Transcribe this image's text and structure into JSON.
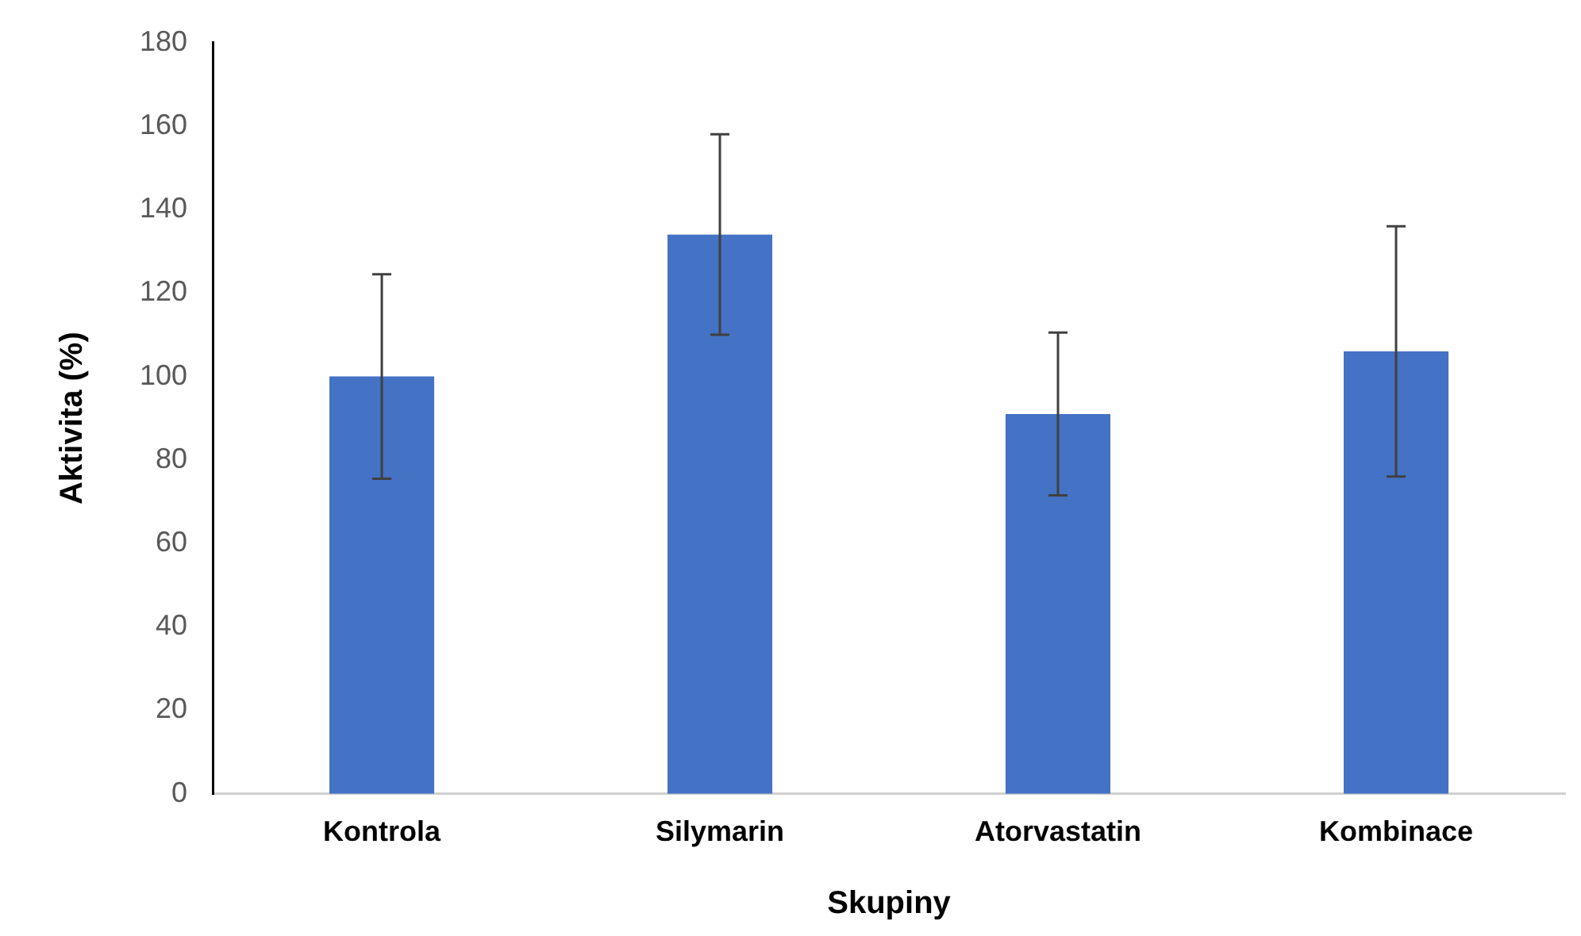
{
  "chart_data": {
    "type": "bar",
    "xlabel": "Skupiny",
    "ylabel": "Aktivita (%)",
    "categories": [
      "Kontrola",
      "Silymarin",
      "Atorvastatin",
      "Kombinace"
    ],
    "values": [
      100,
      134,
      91,
      106
    ],
    "errors": [
      24.5,
      24,
      19.5,
      30
    ],
    "color": "#4472c4",
    "ylim": [
      0,
      180
    ],
    "yticks": [
      0,
      20,
      40,
      60,
      80,
      100,
      120,
      140,
      160,
      180
    ],
    "grid": false,
    "legend": false
  }
}
